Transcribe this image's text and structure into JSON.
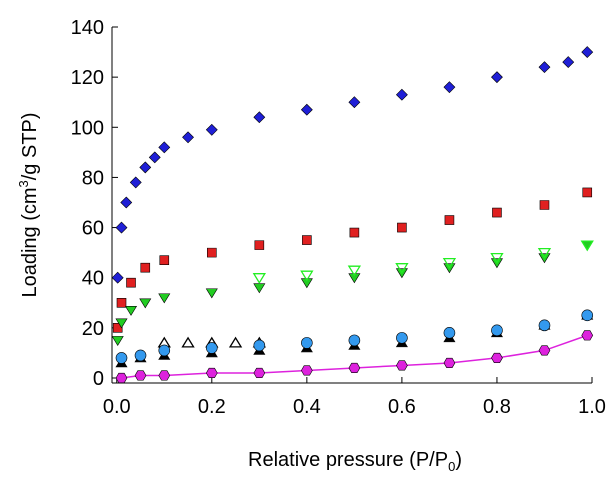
{
  "chart_data": {
    "type": "scatter",
    "x_label": "Relative pressure (P/P",
    "x_label_sub": "0",
    "x_label_end": ")",
    "y_label": "Loading (cm",
    "y_label_sup": "3",
    "y_label_end": "/g STP)",
    "xlim": [
      -0.01,
      1.0
    ],
    "ylim": [
      -2,
      140
    ],
    "xticks": [
      {
        "value": 0,
        "label": "0.0"
      },
      0.2,
      0.4,
      0.6,
      0.8,
      {
        "value": 1,
        "label": "1.0"
      }
    ],
    "yticks": [
      0,
      20,
      40,
      60,
      80,
      100,
      120,
      140
    ],
    "series": [
      {
        "color": "#1f1fd6",
        "marker": "diamond",
        "filled": true,
        "line": false,
        "x": [
          0.002,
          0.01,
          0.02,
          0.04,
          0.06,
          0.08,
          0.1,
          0.15,
          0.2,
          0.3,
          0.4,
          0.5,
          0.6,
          0.7,
          0.8,
          0.9,
          0.95,
          0.99
        ],
        "values": [
          40,
          60,
          70,
          78,
          84,
          88,
          92,
          96,
          99,
          104,
          107,
          110,
          113,
          116,
          120,
          124,
          126,
          130
        ]
      },
      {
        "color": "#e02020",
        "marker": "square",
        "filled": true,
        "line": false,
        "x": [
          0.002,
          0.01,
          0.03,
          0.06,
          0.1,
          0.2,
          0.3,
          0.4,
          0.5,
          0.6,
          0.7,
          0.8,
          0.9,
          0.99
        ],
        "values": [
          20,
          30,
          38,
          44,
          47,
          50,
          53,
          55,
          58,
          60,
          63,
          66,
          69,
          74
        ]
      },
      {
        "color": "#22cc22",
        "marker": "triangle-down",
        "filled": true,
        "line": false,
        "x": [
          0.002,
          0.01,
          0.03,
          0.06,
          0.1,
          0.2,
          0.3,
          0.4,
          0.5,
          0.6,
          0.7,
          0.8,
          0.9,
          0.99
        ],
        "values": [
          15,
          22,
          27,
          30,
          32,
          34,
          36,
          38,
          40,
          42,
          44,
          46,
          48,
          53
        ]
      },
      {
        "color": "#22ee22",
        "marker": "triangle-down",
        "filled": false,
        "line": false,
        "x": [
          0.3,
          0.4,
          0.5,
          0.6,
          0.7,
          0.8,
          0.9,
          0.99
        ],
        "values": [
          40,
          41,
          43,
          44,
          46,
          48,
          50,
          53
        ]
      },
      {
        "color": "#000000",
        "marker": "triangle-up",
        "filled": true,
        "line": false,
        "x": [
          0.01,
          0.05,
          0.1,
          0.2,
          0.3,
          0.4,
          0.5,
          0.6,
          0.7,
          0.8,
          0.9,
          0.99
        ],
        "values": [
          6,
          8,
          9,
          10,
          11,
          12,
          13,
          14,
          16,
          18,
          21,
          25
        ]
      },
      {
        "color": "#000000",
        "marker": "triangle-up",
        "filled": false,
        "line": false,
        "x": [
          0.1,
          0.15,
          0.2,
          0.25,
          0.3
        ],
        "values": [
          14,
          14,
          14,
          14,
          14
        ]
      },
      {
        "color": "#3399ee",
        "marker": "circle",
        "filled": true,
        "line": false,
        "x": [
          0.01,
          0.05,
          0.1,
          0.2,
          0.3,
          0.4,
          0.5,
          0.6,
          0.7,
          0.8,
          0.9,
          0.99
        ],
        "values": [
          8,
          9,
          11,
          12,
          13,
          14,
          15,
          16,
          18,
          19,
          21,
          25
        ]
      },
      {
        "color": "#dd22dd",
        "marker": "hexagon",
        "filled": true,
        "line": true,
        "x": [
          0.01,
          0.05,
          0.1,
          0.2,
          0.3,
          0.4,
          0.5,
          0.6,
          0.7,
          0.8,
          0.9,
          0.99
        ],
        "values": [
          0,
          1,
          1,
          2,
          2,
          3,
          4,
          5,
          6,
          8,
          11,
          17
        ]
      }
    ]
  }
}
